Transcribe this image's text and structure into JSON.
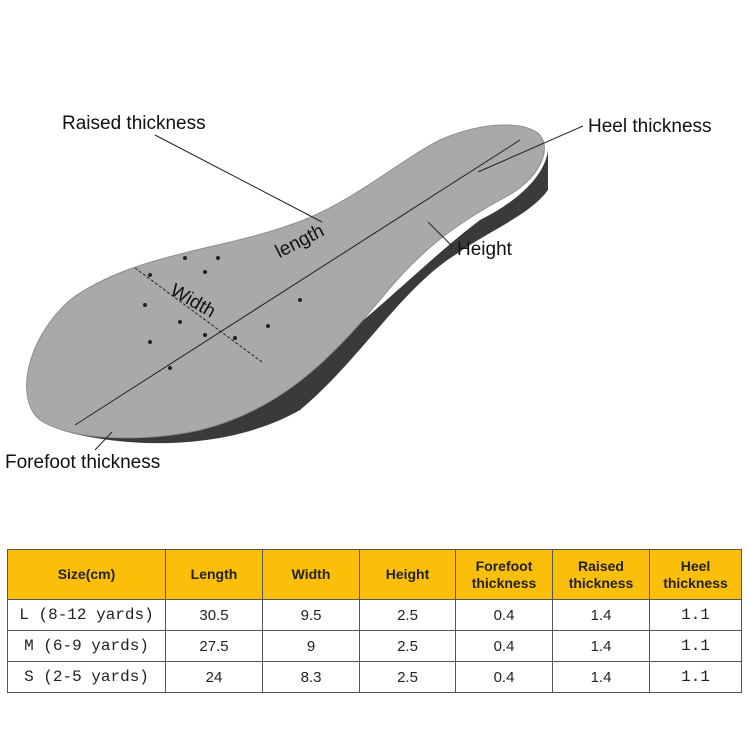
{
  "labels": {
    "raised_thickness": "Raised thickness",
    "heel_thickness": "Heel thickness",
    "height": "Height",
    "length": "length",
    "width": "Width",
    "forefoot_thickness": "Forefoot thickness"
  },
  "table": {
    "headers": [
      "Size(cm)",
      "Length",
      "Width",
      "Height",
      "Forefoot thickness",
      "Raised thickness",
      "Heel thickness"
    ],
    "rows": [
      [
        "L (8-12 yards)",
        "30.5",
        "9.5",
        "2.5",
        "0.4",
        "1.4",
        "1.1"
      ],
      [
        "M (6-9 yards)",
        "27.5",
        "9",
        "2.5",
        "0.4",
        "1.4",
        "1.1"
      ],
      [
        "S (2-5 yards)",
        "24",
        "8.3",
        "2.5",
        "0.4",
        "1.4",
        "1.1"
      ]
    ]
  },
  "colors": {
    "header": "#fbbf09",
    "insole": "#a9a9ab",
    "sole": "#3a3a3a"
  }
}
